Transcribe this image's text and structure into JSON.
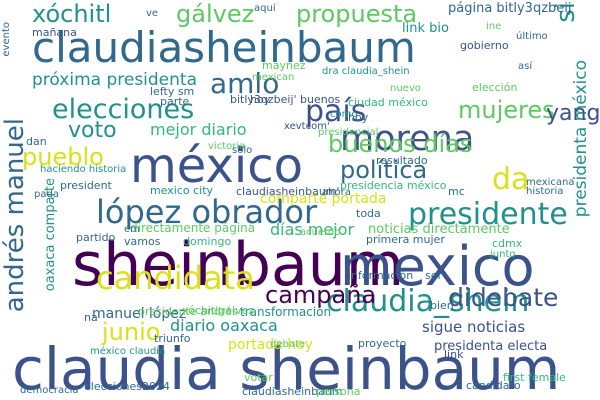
{
  "word_cloud": {
    "background": "#ffffff",
    "palette": [
      "#440154",
      "#3b528b",
      "#21918c",
      "#5ec962",
      "#fde725"
    ],
    "words": [
      {
        "text": "claudia sheinbaum",
        "color": "#3b528b"
      },
      {
        "text": "sheinbaum",
        "color": "#440154"
      },
      {
        "text": "méxico",
        "color": "#3b528b"
      },
      {
        "text": "mexico",
        "color": "#3b528b"
      },
      {
        "text": "claudiasheinbaum",
        "color": "#31688e"
      },
      {
        "text": "morena",
        "color": "#3b528b"
      },
      {
        "text": "candidata",
        "color": "#d8e219"
      },
      {
        "text": "lópez obrador",
        "color": "#31688e"
      },
      {
        "text": "presidente",
        "color": "#21918c"
      },
      {
        "text": "elecciones",
        "color": "#21918c"
      },
      {
        "text": "país",
        "color": "#3b528b"
      },
      {
        "text": "mujeres",
        "color": "#5ec962"
      },
      {
        "text": "claudia_shein",
        "color": "#21918c"
      },
      {
        "text": "didebate",
        "color": "#3b528b"
      },
      {
        "text": "amlo",
        "color": "#31688e"
      },
      {
        "text": "pueblo",
        "color": "#d8e219"
      },
      {
        "text": "campaña",
        "color": "#440154"
      },
      {
        "text": "voto",
        "color": "#21918c"
      },
      {
        "text": "buenos días",
        "color": "#5ec962"
      },
      {
        "text": "política",
        "color": "#31688e"
      },
      {
        "text": "xóchitl",
        "color": "#21918c"
      },
      {
        "text": "gálvez",
        "color": "#5ec962"
      },
      {
        "text": "propuesta",
        "color": "#5ec962"
      },
      {
        "text": "junio",
        "color": "#d8e219"
      },
      {
        "text": "andrés manuel",
        "color": "#31688e"
      },
      {
        "text": "próxima presidenta",
        "color": "#21918c"
      },
      {
        "text": "presidenta méxico",
        "color": "#21918c"
      },
      {
        "text": "yang",
        "color": "#3b528b"
      },
      {
        "text": "da",
        "color": "#d8e219"
      },
      {
        "text": "si",
        "color": "#21918c"
      },
      {
        "text": "mejor diario",
        "color": "#35b779"
      },
      {
        "text": "días mejor",
        "color": "#35b779"
      },
      {
        "text": "diario oaxaca",
        "color": "#21918c"
      },
      {
        "text": "manuel lópez",
        "color": "#31688e"
      },
      {
        "text": "portada hoy",
        "color": "#d8e219"
      },
      {
        "text": "comparte portada",
        "color": "#d8e219"
      },
      {
        "text": "oaxaca comparte",
        "color": "#21918c"
      },
      {
        "text": "sigue noticias",
        "color": "#3b528b"
      },
      {
        "text": "noticias directamente",
        "color": "#5ec962"
      },
      {
        "text": "directamente página",
        "color": "#5ec962"
      },
      {
        "text": "presidente andrés",
        "color": "#5ec962"
      },
      {
        "text": "transformación",
        "color": "#21918c"
      },
      {
        "text": "presidenta electa",
        "color": "#3b528b"
      },
      {
        "text": "primera mujer",
        "color": "#31688e"
      },
      {
        "text": "página bitly3qzbeij",
        "color": "#31688e"
      },
      {
        "text": "link bio",
        "color": "#21918c"
      },
      {
        "text": "mañana",
        "color": "#3b528b"
      },
      {
        "text": "lefty sm",
        "color": "#31688e"
      },
      {
        "text": "parte",
        "color": "#31688e"
      },
      {
        "text": "hoy",
        "color": "#31688e"
      },
      {
        "text": "mexico city",
        "color": "#21918c"
      },
      {
        "text": "claudiasheinbaum'",
        "color": "#3b528b"
      },
      {
        "text": "resultado",
        "color": "#31688e"
      },
      {
        "text": "vamos",
        "color": "#31688e"
      },
      {
        "text": "domingo",
        "color": "#35b779"
      },
      {
        "text": "mc",
        "color": "#31688e"
      },
      {
        "text": "presidencia méxico",
        "color": "#35b779"
      },
      {
        "text": "ciudad méxico",
        "color": "#35b779"
      },
      {
        "text": "bitly3qzbeij' buenos",
        "color": "#3b528b"
      },
      {
        "text": "xevtcom'",
        "color": "#3b528b"
      },
      {
        "text": "gobierno",
        "color": "#3b528b"
      },
      {
        "text": "elección",
        "color": "#5ec962"
      },
      {
        "text": "maynez",
        "color": "#5ec962"
      },
      {
        "text": "xóchitlgalvez",
        "color": "#5ec962"
      },
      {
        "text": "first female",
        "color": "#35b779"
      },
      {
        "text": "elecciones2024",
        "color": "#31688e"
      },
      {
        "text": "candidato",
        "color": "#31688e"
      },
      {
        "text": "cdmx",
        "color": "#35b779"
      },
      {
        "text": "junto",
        "color": "#35b779"
      },
      {
        "text": "link",
        "color": "#3b528b"
      },
      {
        "text": "votar",
        "color": "#5ec962"
      },
      {
        "text": "información",
        "color": "#31688e"
      },
      {
        "text": "ser",
        "color": "#31688e"
      },
      {
        "text": "bien",
        "color": "#31688e"
      },
      {
        "text": "toda",
        "color": "#31688e"
      },
      {
        "text": "proyecto",
        "color": "#31688e"
      },
      {
        "text": "triunfo",
        "color": "#31688e"
      },
      {
        "text": "méxico claudia",
        "color": "#21918c"
      },
      {
        "text": "na",
        "color": "#31688e"
      },
      {
        "text": "claudiasheinbaum",
        "color": "#31688e"
      },
      {
        "text": "democracia",
        "color": "#31688e"
      },
      {
        "text": "persona",
        "color": "#5ec962"
      },
      {
        "text": "partido",
        "color": "#31688e"
      },
      {
        "text": "hoy",
        "color": "#31688e"
      },
      {
        "text": "haciendo historia",
        "color": "#21918c"
      },
      {
        "text": "dan",
        "color": "#31688e"
      },
      {
        "text": "president",
        "color": "#31688e"
      },
      {
        "text": "mexicana",
        "color": "#31688e"
      },
      {
        "text": "historia",
        "color": "#31688e"
      },
      {
        "text": "victoria",
        "color": "#5ec962"
      },
      {
        "text": "debate",
        "color": "#5ec962"
      },
      {
        "text": "presidencial",
        "color": "#5ec962"
      },
      {
        "text": "mexican",
        "color": "#5ec962"
      },
      {
        "text": "dra claudia_shein",
        "color": "#21918c"
      },
      {
        "text": "así",
        "color": "#31688e"
      },
      {
        "text": "último",
        "color": "#31688e"
      },
      {
        "text": "ine",
        "color": "#5ec962"
      },
      {
        "text": "aquí",
        "color": "#31688e"
      },
      {
        "text": "ve",
        "color": "#31688e"
      },
      {
        "text": "evento",
        "color": "#31688e"
      },
      {
        "text": "cómo",
        "color": "#21918c"
      },
      {
        "text": "solo",
        "color": "#31688e"
      },
      {
        "text": "pada",
        "color": "#31688e"
      },
      {
        "text": "em",
        "color": "#31688e"
      },
      {
        "text": "nuevo",
        "color": "#5ec962"
      },
      {
        "text": "ahora",
        "color": "#31688e"
      },
      {
        "text": "acuerdo",
        "color": "#5ec962"
      }
    ]
  }
}
